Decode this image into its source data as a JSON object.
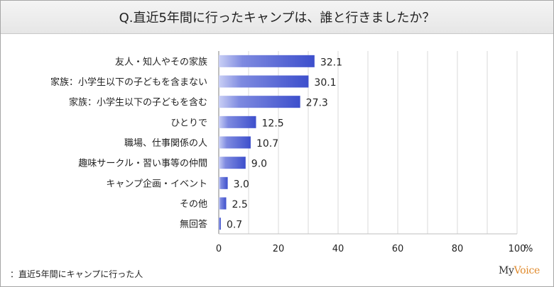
{
  "chart_data": {
    "type": "bar",
    "orientation": "horizontal",
    "title": "Q.直近5年間に行ったキャンプは、誰と行きましたか？",
    "categories": [
      "友人・知人やその家族",
      "家族：小学生以下の子どもを含まない",
      "家族：小学生以下の子どもを含む",
      "ひとりで",
      "職場、仕事関係の人",
      "趣味サークル・習い事等の仲間",
      "キャンプ企画・イベント",
      "その他",
      "無回答"
    ],
    "values": [
      32.1,
      30.1,
      27.3,
      12.5,
      10.7,
      9.0,
      3.0,
      2.5,
      0.7
    ],
    "value_labels": [
      "32.1",
      "30.1",
      "27.3",
      "12.5",
      "10.7",
      "9.0",
      "3.0",
      "2.5",
      "0.7"
    ],
    "xlim": [
      0,
      100
    ],
    "ticks": [
      0,
      20,
      40,
      60,
      80,
      100
    ],
    "tick_labels": [
      "0",
      "20",
      "40",
      "60",
      "80",
      "100"
    ],
    "unit_label": "%",
    "grid": true,
    "bar_color": "#4f5fd3"
  },
  "footer": {
    "note": "：直近5年間にキャンプに行った人",
    "brand_prefix": "My",
    "brand_suffix": "Voice"
  }
}
